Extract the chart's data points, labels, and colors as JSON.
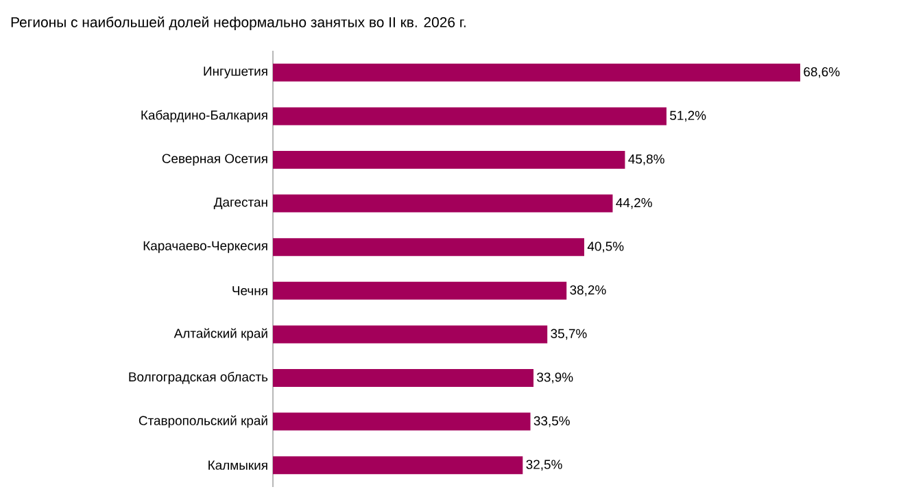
{
  "chart_data": {
    "type": "bar",
    "orientation": "horizontal",
    "title": "Регионы с наибольшей долей неформально занятых во II кв. 2026 г.",
    "categories": [
      "Ингушетия",
      "Кабардино-Балкария",
      "Северная Осетия",
      "Дагестан",
      "Карачаево-Черкесия",
      "Чечня",
      "Алтайский край",
      "Волгоградская область",
      "Ставропольский край",
      "Калмыкия"
    ],
    "values": [
      68.6,
      51.2,
      45.8,
      44.2,
      40.5,
      38.2,
      35.7,
      33.9,
      33.5,
      32.5
    ],
    "value_labels": [
      "68,6%",
      "51,2%",
      "45,8%",
      "44,2%",
      "40,5%",
      "38,2%",
      "35,7%",
      "33,9%",
      "33,5%",
      "32,5%"
    ],
    "color": "#a3005a",
    "tick_labels": "y"
  }
}
